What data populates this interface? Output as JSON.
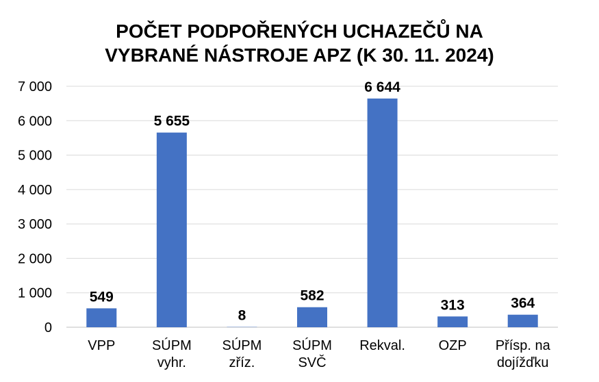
{
  "chart_data": {
    "type": "bar",
    "title_lines": [
      "POČET PODPOŘENÝCH UCHAZEČŮ NA",
      "VYBRANÉ NÁSTROJE APZ (K 30. 11. 2024)"
    ],
    "xlabel": "",
    "ylabel": "",
    "categories": [
      [
        "VPP"
      ],
      [
        "SÚPM",
        "vyhr."
      ],
      [
        "SÚPM",
        "zříz."
      ],
      [
        "SÚPM",
        "SVČ"
      ],
      [
        "Rekval."
      ],
      [
        "OZP"
      ],
      [
        "Přísp. na",
        "dojížďku"
      ]
    ],
    "values": [
      549,
      5655,
      8,
      582,
      6644,
      313,
      364
    ],
    "data_labels": [
      "549",
      "5 655",
      "8",
      "582",
      "6 644",
      "313",
      "364"
    ],
    "ylim": [
      0,
      7000
    ],
    "yticks": [
      0,
      1000,
      2000,
      3000,
      4000,
      5000,
      6000,
      7000
    ],
    "ytick_labels": [
      "0",
      "1 000",
      "2 000",
      "3 000",
      "4 000",
      "5 000",
      "6 000",
      "7 000"
    ],
    "grid": true,
    "bar_color": "#4472c4",
    "grid_color": "#d9d9d9"
  }
}
